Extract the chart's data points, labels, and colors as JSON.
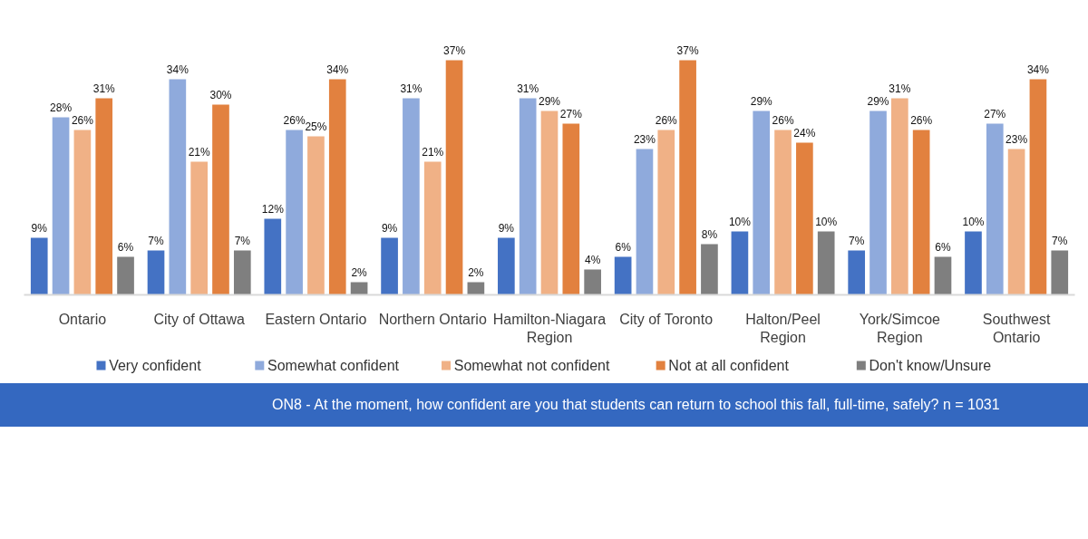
{
  "chart_data": {
    "type": "bar",
    "categories": [
      "Ontario",
      "City of Ottawa",
      "Eastern Ontario",
      "Northern Ontario",
      "Hamilton-Niagara Region",
      "City of Toronto",
      "Halton/Peel Region",
      "York/Simcoe Region",
      "Southwest Ontario"
    ],
    "series": [
      {
        "name": "Very confident",
        "color": "#4472c4",
        "values": [
          9,
          7,
          12,
          9,
          9,
          6,
          10,
          7,
          10
        ],
        "value_labels": [
          "9%",
          "7%",
          "12%",
          "9%",
          "9%",
          "6%",
          "10%",
          "7%",
          "10%"
        ]
      },
      {
        "name": "Somewhat confident",
        "color": "#8faadc",
        "values": [
          28,
          34,
          26,
          31,
          31,
          23,
          29,
          29,
          27
        ],
        "value_labels": [
          "28%",
          "34%",
          "26%",
          "31%",
          "31%",
          "23%",
          "29%",
          "29%",
          "27%"
        ]
      },
      {
        "name": "Somewhat not confident",
        "color": "#f0b186",
        "values": [
          26,
          21,
          25,
          21,
          29,
          26,
          26,
          31,
          23
        ],
        "value_labels": [
          "26%",
          "21%",
          "25%",
          "21%",
          "29%",
          "26%",
          "26%",
          "31%",
          "23%"
        ]
      },
      {
        "name": "Not at all confident",
        "color": "#e2813f",
        "values": [
          31,
          30,
          34,
          37,
          27,
          37,
          24,
          26,
          34
        ],
        "value_labels": [
          "31%",
          "30%",
          "34%",
          "37%",
          "27%",
          "37%",
          "24%",
          "26%",
          "34%"
        ]
      },
      {
        "name": "Don't know/Unsure",
        "color": "#7f7f7f",
        "values": [
          6,
          7,
          2,
          2,
          4,
          8,
          10,
          6,
          7
        ],
        "value_labels": [
          "6%",
          "7%",
          "2%",
          "2%",
          "4%",
          "8%",
          "10%",
          "6%",
          "7%"
        ]
      }
    ],
    "annotations": [
      "ON8 - At the moment, how confident are you that students can return to school this fall, full-time, safely? n = 1031"
    ],
    "legend": "bottom",
    "tick_labels": "x"
  }
}
